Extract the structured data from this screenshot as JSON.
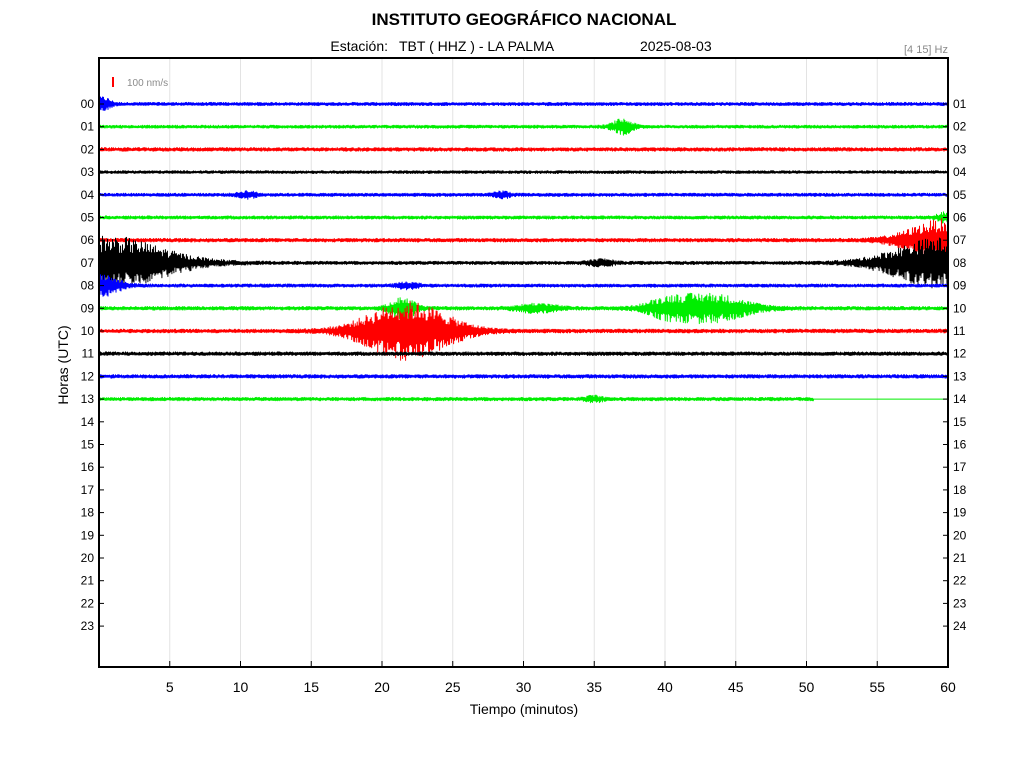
{
  "chart_data": {
    "type": "line",
    "title": "INSTITUTO GEOGRÁFICO NACIONAL",
    "station_label": "Estación:",
    "station": "TBT ( HHZ ) - LA PALMA",
    "date": "2025-08-03",
    "filter": "[4 15] Hz",
    "scale_label": "100 nm/s",
    "xlabel": "Tiempo (minutos)",
    "ylabel": "Horas (UTC)",
    "xlim": [
      0,
      60
    ],
    "x_ticks": [
      "5",
      "10",
      "15",
      "20",
      "25",
      "30",
      "35",
      "40",
      "45",
      "50",
      "55",
      "60"
    ],
    "x_tick_values": [
      5,
      10,
      15,
      20,
      25,
      30,
      35,
      40,
      45,
      50,
      55,
      60
    ],
    "left_hour_labels": [
      "00",
      "01",
      "02",
      "03",
      "04",
      "05",
      "06",
      "07",
      "08",
      "09",
      "10",
      "11",
      "12",
      "13",
      "14",
      "15",
      "16",
      "17",
      "18",
      "19",
      "20",
      "21",
      "22",
      "23"
    ],
    "right_hour_labels": [
      "01",
      "02",
      "03",
      "04",
      "05",
      "06",
      "07",
      "08",
      "09",
      "10",
      "11",
      "12",
      "13",
      "14",
      "15",
      "16",
      "17",
      "18",
      "19",
      "20",
      "21",
      "22",
      "23",
      "24"
    ],
    "grid": "vertical",
    "colors": [
      "#0000ff",
      "#00ee00",
      "#ff0000",
      "#000000"
    ],
    "traces": [
      {
        "hour": 0,
        "color": "#0000ff",
        "noise": 1.6,
        "events": [
          {
            "t": 0.3,
            "amp": 6,
            "dur": 0.6
          }
        ]
      },
      {
        "hour": 1,
        "color": "#00ee00",
        "noise": 1.5,
        "events": [
          {
            "t": 37.0,
            "amp": 7,
            "dur": 0.8
          }
        ]
      },
      {
        "hour": 2,
        "color": "#ff0000",
        "noise": 1.8,
        "events": []
      },
      {
        "hour": 3,
        "color": "#000000",
        "noise": 1.4,
        "events": []
      },
      {
        "hour": 4,
        "color": "#0000ff",
        "noise": 1.6,
        "events": [
          {
            "t": 10.5,
            "amp": 3,
            "dur": 0.7
          },
          {
            "t": 28.5,
            "amp": 3,
            "dur": 0.6
          }
        ]
      },
      {
        "hour": 5,
        "color": "#00ee00",
        "noise": 1.6,
        "events": [
          {
            "t": 59.8,
            "amp": 5,
            "dur": 0.6
          }
        ]
      },
      {
        "hour": 6,
        "color": "#ff0000",
        "noise": 1.8,
        "events": [
          {
            "t": 59.8,
            "amp": 20,
            "dur": 3.0
          }
        ]
      },
      {
        "hour": 7,
        "color": "#000000",
        "noise": 1.6,
        "events": [
          {
            "t": 0.5,
            "amp": 26,
            "dur": 5.0
          },
          {
            "t": 59.4,
            "amp": 24,
            "dur": 4.0
          },
          {
            "t": 35.5,
            "amp": 3,
            "dur": 1.0
          }
        ]
      },
      {
        "hour": 8,
        "color": "#0000ff",
        "noise": 1.6,
        "events": [
          {
            "t": 0.2,
            "amp": 10,
            "dur": 1.4
          },
          {
            "t": 21.8,
            "amp": 3,
            "dur": 0.8
          }
        ]
      },
      {
        "hour": 9,
        "color": "#00ee00",
        "noise": 1.8,
        "events": [
          {
            "t": 21.5,
            "amp": 10,
            "dur": 1.0
          },
          {
            "t": 31.0,
            "amp": 4,
            "dur": 1.5
          },
          {
            "t": 40.0,
            "amp": 6,
            "dur": 1.5
          },
          {
            "t": 43.0,
            "amp": 14,
            "dur": 3.0
          }
        ]
      },
      {
        "hour": 10,
        "color": "#ff0000",
        "noise": 1.9,
        "events": [
          {
            "t": 21.8,
            "amp": 28,
            "dur": 3.5
          }
        ]
      },
      {
        "hour": 11,
        "color": "#000000",
        "noise": 1.8,
        "events": []
      },
      {
        "hour": 12,
        "color": "#0000ff",
        "noise": 1.8,
        "events": []
      },
      {
        "hour": 13,
        "color": "#00ee00",
        "noise": 1.7,
        "events": [
          {
            "t": 35.0,
            "amp": 3,
            "dur": 0.6
          }
        ],
        "end_minute": 50.5
      }
    ]
  }
}
